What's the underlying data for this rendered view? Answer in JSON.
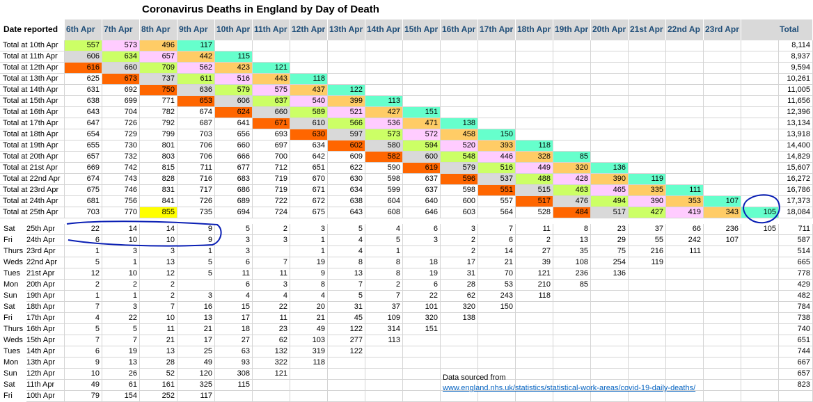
{
  "title": "Coronavirus Deaths in England by Day of Death",
  "header": {
    "date_reported": "Date reported",
    "columns": [
      "6th Apr",
      "7th Apr",
      "8th Apr",
      "9th Apr",
      "10th Apr",
      "11th Apr",
      "12th Apr",
      "13th Apr",
      "14th Apr",
      "15th Apr",
      "16th Apr",
      "17th Apr",
      "18th Apr",
      "19th Apr",
      "20th Apr",
      "21st Apr",
      "22nd Ap",
      "23rd Apr",
      "",
      "Total"
    ]
  },
  "colors": {
    "diagonal": "#66ffcc",
    "lag1": "#ffcc66",
    "lag2": "#ffccff",
    "lag3": "#ccff66",
    "lag4": "#d9d9d9",
    "lag5": "#ff6600",
    "highlight": "#ffff00",
    "header_bg": "#d9d9d9",
    "header_text": "#1f4e79",
    "annotation": "#0a1fb4"
  },
  "totals_rows": [
    {
      "label": "Total at 10th Apr",
      "values": [
        "557",
        "573",
        "496",
        "117",
        "",
        "",
        "",
        "",
        "",
        "",
        "",
        "",
        "",
        "",
        "",
        "",
        "",
        "",
        "",
        ""
      ],
      "total": "8,114"
    },
    {
      "label": "Total at 11th Apr",
      "values": [
        "606",
        "634",
        "657",
        "442",
        "115",
        "",
        "",
        "",
        "",
        "",
        "",
        "",
        "",
        "",
        "",
        "",
        "",
        "",
        "",
        ""
      ],
      "total": "8,937"
    },
    {
      "label": "Total at 12th Apr",
      "values": [
        "616",
        "660",
        "709",
        "562",
        "423",
        "121",
        "",
        "",
        "",
        "",
        "",
        "",
        "",
        "",
        "",
        "",
        "",
        "",
        "",
        ""
      ],
      "total": "9,594"
    },
    {
      "label": "Total at 13th Apr",
      "values": [
        "625",
        "673",
        "737",
        "611",
        "516",
        "443",
        "118",
        "",
        "",
        "",
        "",
        "",
        "",
        "",
        "",
        "",
        "",
        "",
        "",
        ""
      ],
      "total": "10,261"
    },
    {
      "label": "Total at 14th Apr",
      "values": [
        "631",
        "692",
        "750",
        "636",
        "579",
        "575",
        "437",
        "122",
        "",
        "",
        "",
        "",
        "",
        "",
        "",
        "",
        "",
        "",
        "",
        ""
      ],
      "total": "11,005"
    },
    {
      "label": "Total at 15th Apr",
      "values": [
        "638",
        "699",
        "771",
        "653",
        "606",
        "637",
        "540",
        "399",
        "113",
        "",
        "",
        "",
        "",
        "",
        "",
        "",
        "",
        "",
        "",
        ""
      ],
      "total": "11,656"
    },
    {
      "label": "Total at 16th Apr",
      "values": [
        "643",
        "704",
        "782",
        "674",
        "624",
        "660",
        "589",
        "521",
        "427",
        "151",
        "",
        "",
        "",
        "",
        "",
        "",
        "",
        "",
        "",
        ""
      ],
      "total": "12,396"
    },
    {
      "label": "Total at 17th Apr",
      "values": [
        "647",
        "726",
        "792",
        "687",
        "641",
        "671",
        "610",
        "566",
        "536",
        "471",
        "138",
        "",
        "",
        "",
        "",
        "",
        "",
        "",
        "",
        ""
      ],
      "total": "13,134"
    },
    {
      "label": "Total at 18th Apr",
      "values": [
        "654",
        "729",
        "799",
        "703",
        "656",
        "693",
        "630",
        "597",
        "573",
        "572",
        "458",
        "150",
        "",
        "",
        "",
        "",
        "",
        "",
        "",
        ""
      ],
      "total": "13,918"
    },
    {
      "label": "Total at 19th Apr",
      "values": [
        "655",
        "730",
        "801",
        "706",
        "660",
        "697",
        "634",
        "602",
        "580",
        "594",
        "520",
        "393",
        "118",
        "",
        "",
        "",
        "",
        "",
        "",
        ""
      ],
      "total": "14,400"
    },
    {
      "label": "Total at 20th Apr",
      "values": [
        "657",
        "732",
        "803",
        "706",
        "666",
        "700",
        "642",
        "609",
        "582",
        "600",
        "548",
        "446",
        "328",
        "85",
        "",
        "",
        "",
        "",
        "",
        ""
      ],
      "total": "14,829"
    },
    {
      "label": "Total at 21st Apr",
      "values": [
        "669",
        "742",
        "815",
        "711",
        "677",
        "712",
        "651",
        "622",
        "590",
        "619",
        "579",
        "516",
        "449",
        "320",
        "136",
        "",
        "",
        "",
        "",
        ""
      ],
      "total": "15,607"
    },
    {
      "label": "Total at 22nd Apr",
      "values": [
        "674",
        "743",
        "828",
        "716",
        "683",
        "719",
        "670",
        "630",
        "598",
        "637",
        "596",
        "537",
        "488",
        "428",
        "390",
        "119",
        "",
        "",
        "",
        ""
      ],
      "total": "16,272"
    },
    {
      "label": "Total at 23rd Apr",
      "values": [
        "675",
        "746",
        "831",
        "717",
        "686",
        "719",
        "671",
        "634",
        "599",
        "637",
        "598",
        "551",
        "515",
        "463",
        "465",
        "335",
        "111",
        "",
        "",
        ""
      ],
      "total": "16,786"
    },
    {
      "label": "Total at 24th Apr",
      "values": [
        "681",
        "756",
        "841",
        "726",
        "689",
        "722",
        "672",
        "638",
        "604",
        "640",
        "600",
        "557",
        "517",
        "476",
        "494",
        "390",
        "353",
        "107",
        "",
        ""
      ],
      "total": "17,373"
    },
    {
      "label": "Total at 25th Apr",
      "values": [
        "703",
        "770",
        "855",
        "735",
        "694",
        "724",
        "675",
        "643",
        "608",
        "646",
        "603",
        "564",
        "528",
        "484",
        "517",
        "427",
        "419",
        "343",
        "105",
        ""
      ],
      "total": "18,084"
    }
  ],
  "daily_rows": [
    {
      "day": "Sat",
      "date": "25th Apr",
      "values": [
        "22",
        "14",
        "14",
        "9",
        "5",
        "2",
        "3",
        "5",
        "4",
        "6",
        "3",
        "7",
        "11",
        "8",
        "23",
        "37",
        "66",
        "236",
        "105"
      ],
      "total": "711"
    },
    {
      "day": "Fri",
      "date": "24th Apr",
      "values": [
        "6",
        "10",
        "10",
        "9",
        "3",
        "3",
        "1",
        "4",
        "5",
        "3",
        "2",
        "6",
        "2",
        "13",
        "29",
        "55",
        "242",
        "107",
        ""
      ],
      "total": "587"
    },
    {
      "day": "Thurs",
      "date": "23rd Apr",
      "values": [
        "1",
        "3",
        "3",
        "1",
        "3",
        "",
        "1",
        "4",
        "1",
        "",
        "2",
        "14",
        "27",
        "35",
        "75",
        "216",
        "111",
        "",
        ""
      ],
      "total": "514"
    },
    {
      "day": "Weds",
      "date": "22nd Apr",
      "values": [
        "5",
        "1",
        "13",
        "5",
        "6",
        "7",
        "19",
        "8",
        "8",
        "18",
        "17",
        "21",
        "39",
        "108",
        "254",
        "119",
        "",
        "",
        ""
      ],
      "total": "665"
    },
    {
      "day": "Tues",
      "date": "21st Apr",
      "values": [
        "12",
        "10",
        "12",
        "5",
        "11",
        "11",
        "9",
        "13",
        "8",
        "19",
        "31",
        "70",
        "121",
        "236",
        "136",
        "",
        "",
        "",
        ""
      ],
      "total": "778"
    },
    {
      "day": "Mon",
      "date": "20th Apr",
      "values": [
        "2",
        "2",
        "2",
        "",
        "6",
        "3",
        "8",
        "7",
        "2",
        "6",
        "28",
        "53",
        "210",
        "85",
        "",
        "",
        "",
        "",
        ""
      ],
      "total": "429"
    },
    {
      "day": "Sun",
      "date": "19th Apr",
      "values": [
        "1",
        "1",
        "2",
        "3",
        "4",
        "4",
        "4",
        "5",
        "7",
        "22",
        "62",
        "243",
        "118",
        "",
        "",
        "",
        "",
        "",
        ""
      ],
      "total": "482"
    },
    {
      "day": "Sat",
      "date": "18th Apr",
      "values": [
        "7",
        "3",
        "7",
        "16",
        "15",
        "22",
        "20",
        "31",
        "37",
        "101",
        "320",
        "150",
        "",
        "",
        "",
        "",
        "",
        "",
        ""
      ],
      "total": "784"
    },
    {
      "day": "Fri",
      "date": "17th Apr",
      "values": [
        "4",
        "22",
        "10",
        "13",
        "17",
        "11",
        "21",
        "45",
        "109",
        "320",
        "138",
        "",
        "",
        "",
        "",
        "",
        "",
        "",
        ""
      ],
      "total": "738"
    },
    {
      "day": "Thurs",
      "date": "16th Apr",
      "values": [
        "5",
        "5",
        "11",
        "21",
        "18",
        "23",
        "49",
        "122",
        "314",
        "151",
        "",
        "",
        "",
        "",
        "",
        "",
        "",
        "",
        ""
      ],
      "total": "740"
    },
    {
      "day": "Weds",
      "date": "15th Apr",
      "values": [
        "7",
        "7",
        "21",
        "17",
        "27",
        "62",
        "103",
        "277",
        "113",
        "",
        "",
        "",
        "",
        "",
        "",
        "",
        "",
        "",
        ""
      ],
      "total": "651"
    },
    {
      "day": "Tues",
      "date": "14th Apr",
      "values": [
        "6",
        "19",
        "13",
        "25",
        "63",
        "132",
        "319",
        "122",
        "",
        "",
        "",
        "",
        "",
        "",
        "",
        "",
        "",
        "",
        ""
      ],
      "total": "744"
    },
    {
      "day": "Mon",
      "date": "13th Apr",
      "values": [
        "9",
        "13",
        "28",
        "49",
        "93",
        "322",
        "118",
        "",
        "",
        "",
        "",
        "",
        "",
        "",
        "",
        "",
        "",
        "",
        ""
      ],
      "total": "667"
    },
    {
      "day": "Sun",
      "date": "12th Apr",
      "values": [
        "10",
        "26",
        "52",
        "120",
        "308",
        "121",
        "",
        "",
        "",
        "",
        "",
        "",
        "",
        "",
        "",
        "",
        "",
        "",
        ""
      ],
      "total": "657"
    },
    {
      "day": "Sat",
      "date": "11th Apr",
      "values": [
        "49",
        "61",
        "161",
        "325",
        "115",
        "",
        "",
        "",
        "",
        "",
        "",
        "",
        "",
        "",
        "",
        "",
        "",
        "",
        ""
      ],
      "total": "823"
    },
    {
      "day": "Fri",
      "date": "10th Apr",
      "values": [
        "79",
        "154",
        "252",
        "117",
        "",
        "",
        "",
        "",
        "",
        "",
        "",
        "",
        "",
        "",
        "",
        "",
        "",
        "",
        ""
      ],
      "total": ""
    }
  ],
  "source": {
    "label": "Data sourced from",
    "url": "www.england.nhs.uk/statistics/statistical-work-areas/covid-19-daily-deaths/"
  }
}
